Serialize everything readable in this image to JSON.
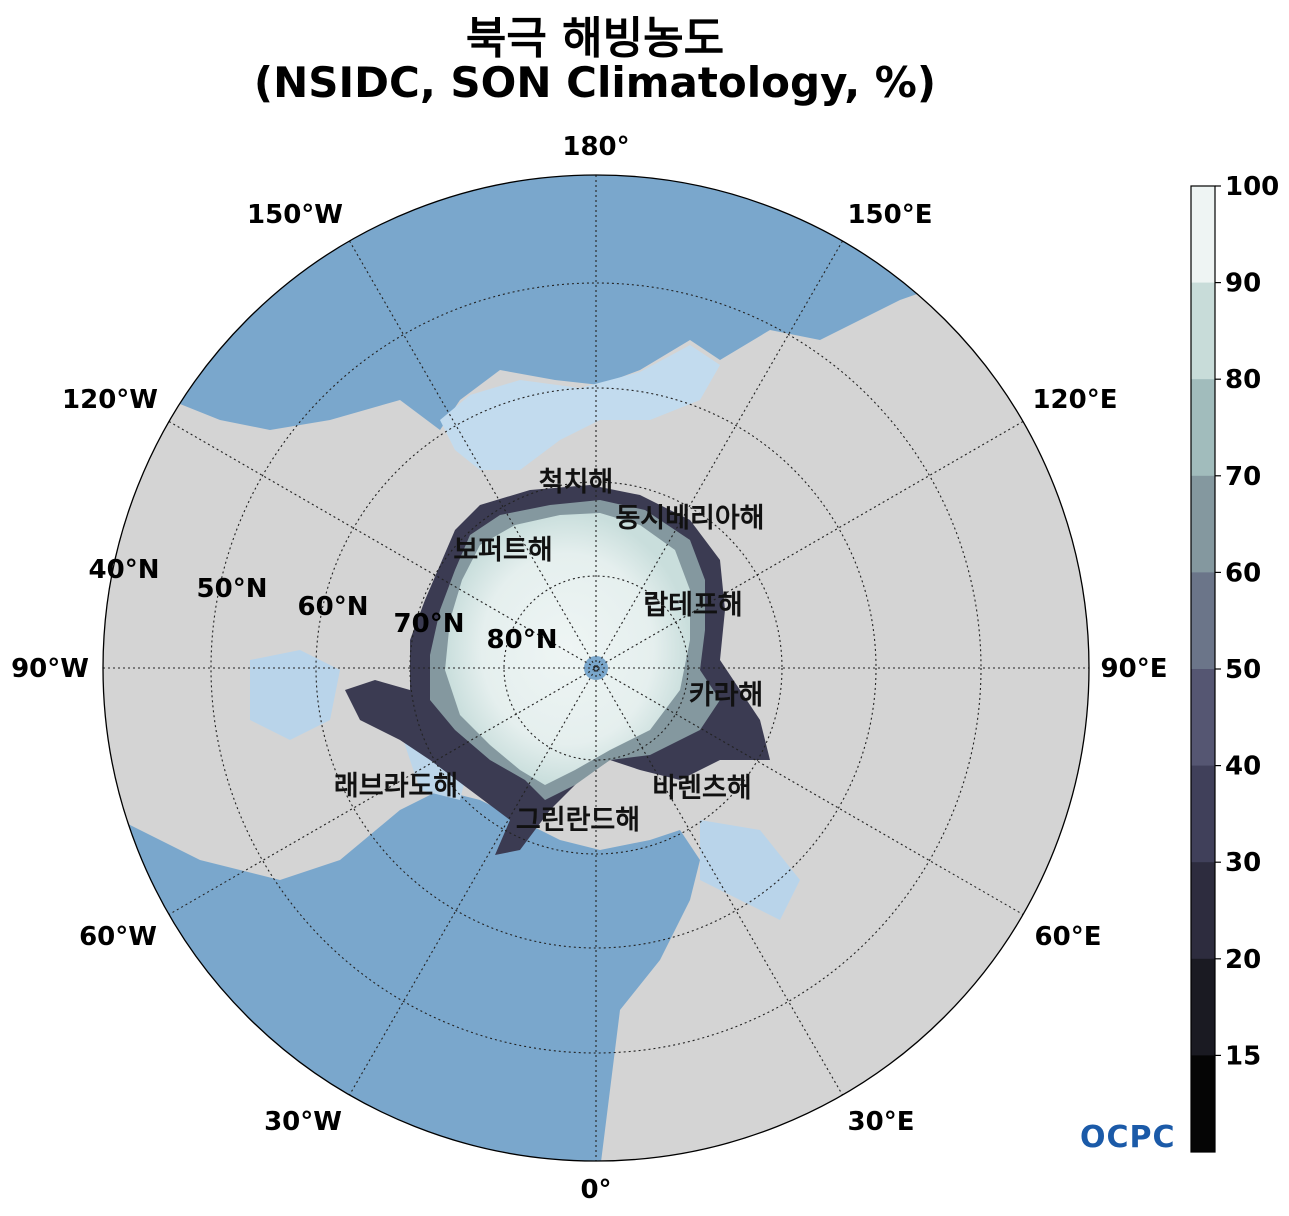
{
  "title": {
    "line1": "북극 해빙농도",
    "line2": "(NSIDC, SON Climatology, %)"
  },
  "longitude_labels": [
    "180°",
    "150°E",
    "120°E",
    "90°E",
    "60°E",
    "30°E",
    "0°",
    "30°W",
    "60°W",
    "90°W",
    "120°W",
    "150°W"
  ],
  "latitude_labels": [
    "40°N",
    "50°N",
    "60°N",
    "70°N",
    "80°N"
  ],
  "sea_labels": [
    "척치해",
    "동시베리아해",
    "보퍼트해",
    "랍테프해",
    "카라해",
    "바렌츠해",
    "그린란드해",
    "래브라도해"
  ],
  "colorbar": {
    "ticks": [
      "100",
      "90",
      "80",
      "70",
      "60",
      "50",
      "40",
      "30",
      "20",
      "15"
    ],
    "colors": [
      "#eef4f3",
      "#c8dcd9",
      "#a1bcbc",
      "#84989f",
      "#6b7589",
      "#555672",
      "#40405a",
      "#2d2c3e",
      "#1a1a22",
      "#050505"
    ]
  },
  "colors": {
    "land": "#d4d4d4",
    "ocean": "#7aa7cc",
    "ocean_shallow": "#c2dbee",
    "ice_core": "#e9f2f2"
  },
  "logo": "OCPC"
}
